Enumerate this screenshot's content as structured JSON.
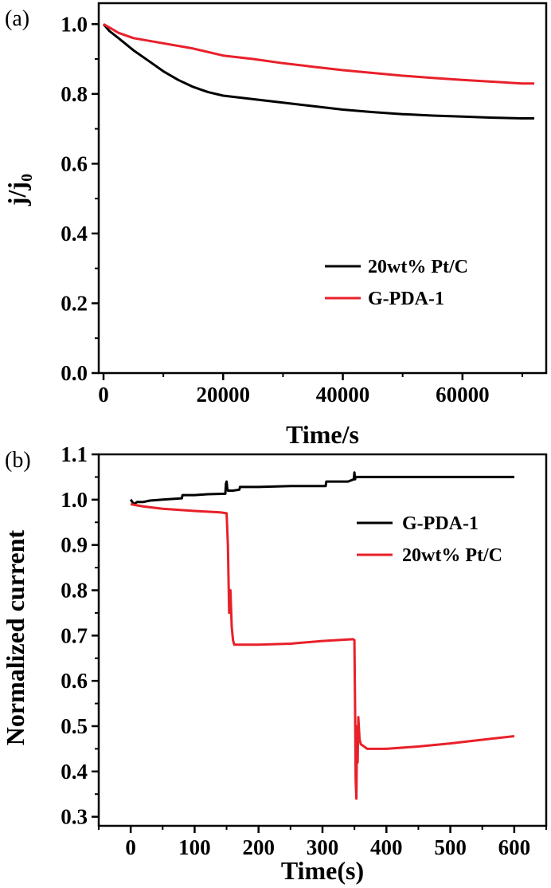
{
  "chart_data": [
    {
      "type": "line",
      "panel_label": "(a)",
      "xlabel": "Time/s",
      "ylabel_main": "j/j",
      "ylabel_sub": "0",
      "xlim": [
        -800,
        74000
      ],
      "ylim": [
        0.0,
        1.06
      ],
      "xticks": [
        0,
        20000,
        40000,
        60000
      ],
      "yticks": [
        0.0,
        0.2,
        0.4,
        0.6,
        0.8,
        1.0
      ],
      "xtick_labels": [
        "0",
        "20000",
        "40000",
        "60000"
      ],
      "ytick_labels": [
        "0.0",
        "0.2",
        "0.4",
        "0.6",
        "0.8",
        "1.0"
      ],
      "legend_position": "center-right",
      "series": [
        {
          "name": "20wt% Pt/C",
          "color": "#000000",
          "x": [
            0,
            1000,
            2500,
            5000,
            7500,
            10000,
            12500,
            15000,
            17500,
            20000,
            25000,
            30000,
            35000,
            40000,
            45000,
            50000,
            55000,
            60000,
            65000,
            70000,
            72000
          ],
          "y": [
            1.0,
            0.98,
            0.96,
            0.925,
            0.895,
            0.865,
            0.84,
            0.82,
            0.805,
            0.795,
            0.785,
            0.775,
            0.765,
            0.755,
            0.748,
            0.742,
            0.738,
            0.735,
            0.732,
            0.73,
            0.73
          ]
        },
        {
          "name": "G-PDA-1",
          "color": "#e8202a",
          "x": [
            0,
            1000,
            2500,
            5000,
            10000,
            15000,
            20000,
            25000,
            30000,
            35000,
            40000,
            45000,
            50000,
            55000,
            60000,
            65000,
            70000,
            72000
          ],
          "y": [
            1.0,
            0.99,
            0.975,
            0.96,
            0.945,
            0.93,
            0.91,
            0.9,
            0.888,
            0.878,
            0.868,
            0.86,
            0.852,
            0.846,
            0.84,
            0.835,
            0.83,
            0.83
          ]
        }
      ]
    },
    {
      "type": "line",
      "panel_label": "(b)",
      "xlabel": "Time(s)",
      "ylabel": "Normalized current",
      "xlim": [
        -50,
        650
      ],
      "ylim": [
        0.28,
        1.1
      ],
      "xticks": [
        0,
        100,
        200,
        300,
        400,
        500,
        600
      ],
      "yticks": [
        0.3,
        0.4,
        0.5,
        0.6,
        0.7,
        0.8,
        0.9,
        1.0,
        1.1
      ],
      "xtick_labels": [
        "0",
        "100",
        "200",
        "300",
        "400",
        "500",
        "600"
      ],
      "ytick_labels": [
        "0.3",
        "0.4",
        "0.5",
        "0.6",
        "0.7",
        "0.8",
        "0.9",
        "1.0",
        "1.1"
      ],
      "legend_position": "center-right",
      "series": [
        {
          "name": "G-PDA-1",
          "color": "#000000",
          "x": [
            0,
            5,
            10,
            20,
            30,
            50,
            80,
            81,
            100,
            120,
            148,
            149,
            150,
            151,
            152,
            160,
            170,
            171,
            200,
            250,
            300,
            305,
            306,
            340,
            349,
            350,
            351,
            352,
            360,
            400,
            450,
            500,
            550,
            600
          ],
          "y": [
            1.0,
            0.99,
            0.995,
            0.995,
            0.998,
            1.0,
            1.003,
            1.01,
            1.01,
            1.012,
            1.013,
            1.035,
            1.04,
            1.025,
            1.02,
            1.02,
            1.022,
            1.028,
            1.028,
            1.03,
            1.03,
            1.03,
            1.04,
            1.04,
            1.045,
            1.06,
            1.045,
            1.05,
            1.05,
            1.05,
            1.05,
            1.05,
            1.05,
            1.05
          ]
        },
        {
          "name": "20wt% Pt/C",
          "color": "#e8202a",
          "x": [
            0,
            20,
            50,
            100,
            140,
            150,
            152,
            154,
            156,
            158,
            160,
            162,
            164,
            200,
            250,
            300,
            348,
            350,
            351,
            352,
            353,
            354,
            355,
            356,
            358,
            360,
            365,
            370,
            400,
            450,
            500,
            550,
            600
          ],
          "y": [
            0.99,
            0.985,
            0.98,
            0.975,
            0.972,
            0.97,
            0.9,
            0.75,
            0.8,
            0.72,
            0.69,
            0.68,
            0.68,
            0.68,
            0.682,
            0.688,
            0.692,
            0.69,
            0.55,
            0.38,
            0.34,
            0.5,
            0.42,
            0.52,
            0.47,
            0.46,
            0.455,
            0.45,
            0.45,
            0.455,
            0.462,
            0.47,
            0.478
          ]
        }
      ]
    }
  ]
}
